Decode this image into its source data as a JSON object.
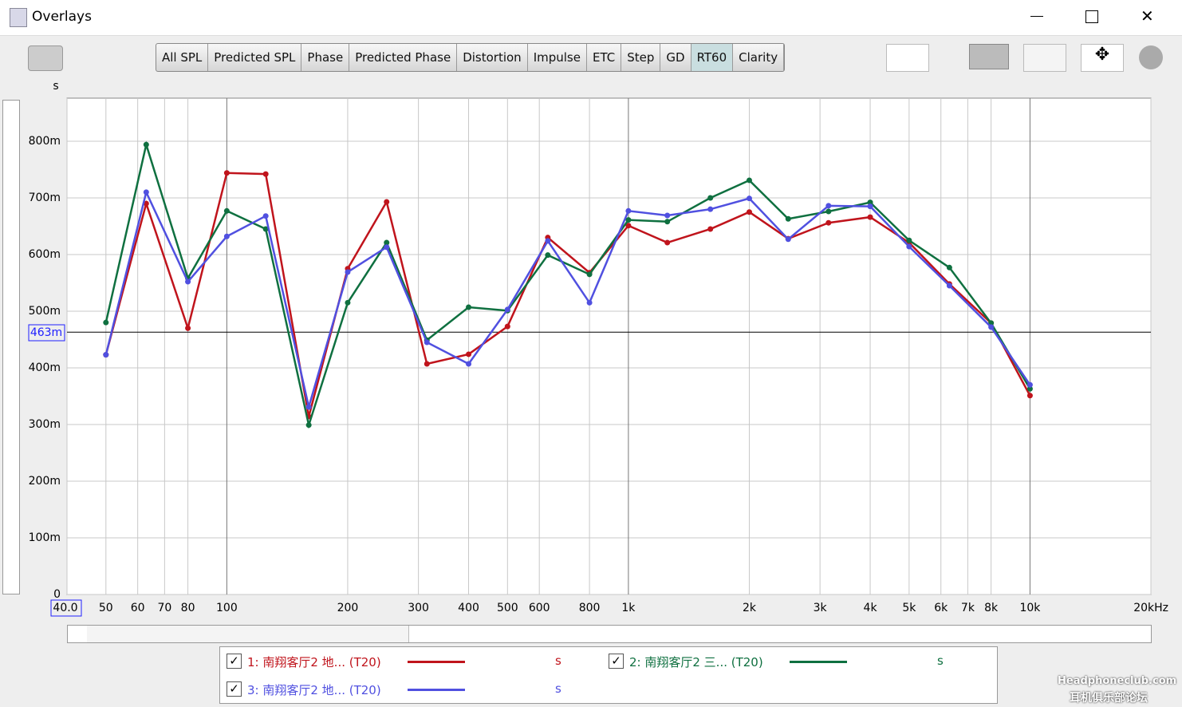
{
  "window": {
    "title": "Overlays"
  },
  "tabs": [
    "All SPL",
    "Predicted SPL",
    "Phase",
    "Predicted Phase",
    "Distortion",
    "Impulse",
    "ETC",
    "Step",
    "GD",
    "RT60",
    "Clarity"
  ],
  "selected_tab": "RT60",
  "watermark": [
    "Headphoneclub.com",
    "耳机俱乐部论坛"
  ],
  "chart_data": {
    "type": "line",
    "ylabel": "s",
    "xscale": "log",
    "grid": true,
    "x": [
      50,
      63,
      80,
      100,
      125,
      160,
      200,
      250,
      315,
      400,
      500,
      630,
      800,
      1000,
      1250,
      1600,
      2000,
      2500,
      3150,
      4000,
      5000,
      6300,
      8000,
      10000
    ],
    "series": [
      {
        "name": "1: 南翔客厅2 地... (T20)",
        "unit": "s",
        "color": "#c0141c",
        "values": [
          0.423,
          0.69,
          0.47,
          0.744,
          0.742,
          0.314,
          0.575,
          0.693,
          0.407,
          0.424,
          0.473,
          0.63,
          0.568,
          0.651,
          0.621,
          0.645,
          0.675,
          0.628,
          0.656,
          0.666,
          0.621,
          0.548,
          0.479,
          0.351
        ]
      },
      {
        "name": "2: 南翔客厅2 三... (T20)",
        "unit": "s",
        "color": "#0f7040",
        "values": [
          0.48,
          0.794,
          0.558,
          0.677,
          0.645,
          0.299,
          0.515,
          0.621,
          0.449,
          0.507,
          0.501,
          0.599,
          0.565,
          0.661,
          0.658,
          0.7,
          0.731,
          0.663,
          0.676,
          0.692,
          0.625,
          0.577,
          0.479,
          0.363
        ]
      },
      {
        "name": "3: 南翔客厅2 地... (T20)",
        "unit": "s",
        "color": "#5050e0",
        "values": [
          0.423,
          0.71,
          0.552,
          0.632,
          0.668,
          0.331,
          0.569,
          0.613,
          0.445,
          0.407,
          0.503,
          0.624,
          0.515,
          0.677,
          0.669,
          0.68,
          0.699,
          0.627,
          0.686,
          0.685,
          0.614,
          0.545,
          0.472,
          0.37
        ]
      }
    ],
    "xlim": [
      40,
      20000
    ],
    "xticks": [
      {
        "value": 40,
        "label": "40.0"
      },
      50,
      60,
      70,
      80,
      100,
      200,
      300,
      400,
      500,
      600,
      800,
      {
        "value": 1000,
        "label": "1k"
      },
      {
        "value": 2000,
        "label": "2k"
      },
      {
        "value": 3000,
        "label": "3k"
      },
      {
        "value": 4000,
        "label": "4k"
      },
      {
        "value": 5000,
        "label": "5k"
      },
      {
        "value": 6000,
        "label": "6k"
      },
      {
        "value": 7000,
        "label": "7k"
      },
      {
        "value": 8000,
        "label": "8k"
      },
      {
        "value": 10000,
        "label": "10k"
      },
      {
        "value": 20000,
        "label": "20kHz"
      }
    ],
    "ylim": [
      0,
      0.876
    ],
    "yticks": [
      0,
      {
        "value": 0.1,
        "label": "100m"
      },
      {
        "value": 0.2,
        "label": "200m"
      },
      {
        "value": 0.3,
        "label": "300m"
      },
      {
        "value": 0.4,
        "label": "400m"
      },
      {
        "value": 0.5,
        "label": "500m"
      },
      {
        "value": 0.6,
        "label": "600m"
      },
      {
        "value": 0.7,
        "label": "700m"
      },
      {
        "value": 0.8,
        "label": "800m"
      }
    ],
    "cursor": {
      "value": 0.463,
      "label": "463m"
    }
  }
}
